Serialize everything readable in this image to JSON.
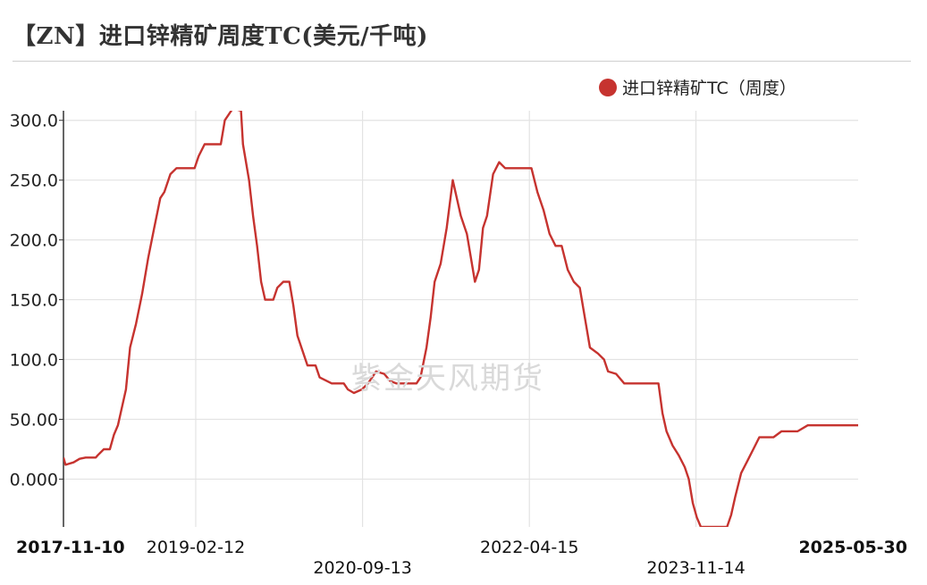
{
  "title": "【ZN】进口锌精矿周度TC(美元/千吨)",
  "watermark": "紫金天风期货",
  "colors": {
    "series": "#c6332f",
    "grid": "#e3e3e3",
    "axis": "#333333"
  },
  "chart_data": {
    "type": "line",
    "title": "【ZN】进口锌精矿周度TC(美元/千吨)",
    "xlabel": "",
    "ylabel": "",
    "xlim": [
      "2017-11-10",
      "2025-05-30"
    ],
    "ylim": [
      -40,
      308
    ],
    "grid": true,
    "legend_position": "top-right",
    "y_ticks": [
      0,
      50,
      100,
      150,
      200,
      250,
      300
    ],
    "y_tick_labels": [
      "0.000",
      "50.00",
      "100.0",
      "150.0",
      "200.0",
      "250.0",
      "300.0"
    ],
    "x_ticks": [
      "2017-11-10",
      "2019-02-12",
      "2020-09-13",
      "2022-04-15",
      "2023-11-14",
      "2025-05-30"
    ],
    "x_tick_bold": [
      true,
      false,
      false,
      false,
      false,
      true
    ],
    "series": [
      {
        "name": "进口锌精矿TC（周度）",
        "points": [
          [
            "2017-11-10",
            18
          ],
          [
            "2017-11-17",
            12
          ],
          [
            "2017-12-15",
            14
          ],
          [
            "2018-01-05",
            17
          ],
          [
            "2018-01-26",
            18
          ],
          [
            "2018-03-02",
            18
          ],
          [
            "2018-03-09",
            20
          ],
          [
            "2018-03-30",
            25
          ],
          [
            "2018-04-20",
            25
          ],
          [
            "2018-05-04",
            37
          ],
          [
            "2018-05-18",
            45
          ],
          [
            "2018-06-01",
            60
          ],
          [
            "2018-06-15",
            75
          ],
          [
            "2018-06-29",
            110
          ],
          [
            "2018-07-20",
            130
          ],
          [
            "2018-08-10",
            155
          ],
          [
            "2018-08-31",
            185
          ],
          [
            "2018-09-21",
            210
          ],
          [
            "2018-10-12",
            235
          ],
          [
            "2018-10-26",
            240
          ],
          [
            "2018-11-16",
            255
          ],
          [
            "2018-12-07",
            260
          ],
          [
            "2019-02-08",
            260
          ],
          [
            "2019-02-22",
            270
          ],
          [
            "2019-03-15",
            280
          ],
          [
            "2019-05-10",
            280
          ],
          [
            "2019-05-24",
            300
          ],
          [
            "2019-06-21",
            310
          ],
          [
            "2019-07-19",
            308
          ],
          [
            "2019-07-26",
            280
          ],
          [
            "2019-08-16",
            250
          ],
          [
            "2019-08-30",
            220
          ],
          [
            "2019-09-13",
            195
          ],
          [
            "2019-09-27",
            165
          ],
          [
            "2019-10-11",
            150
          ],
          [
            "2019-11-08",
            150
          ],
          [
            "2019-11-22",
            160
          ],
          [
            "2019-12-13",
            165
          ],
          [
            "2020-01-03",
            165
          ],
          [
            "2020-01-17",
            145
          ],
          [
            "2020-01-31",
            120
          ],
          [
            "2020-02-14",
            110
          ],
          [
            "2020-03-06",
            95
          ],
          [
            "2020-04-03",
            95
          ],
          [
            "2020-04-17",
            85
          ],
          [
            "2020-05-29",
            80
          ],
          [
            "2020-07-10",
            80
          ],
          [
            "2020-07-24",
            75
          ],
          [
            "2020-08-14",
            72
          ],
          [
            "2020-09-11",
            75
          ],
          [
            "2020-10-02",
            80
          ],
          [
            "2020-10-30",
            90
          ],
          [
            "2020-11-27",
            88
          ],
          [
            "2020-12-18",
            82
          ],
          [
            "2021-01-08",
            80
          ],
          [
            "2021-03-19",
            80
          ],
          [
            "2021-04-02",
            85
          ],
          [
            "2021-04-23",
            110
          ],
          [
            "2021-05-07",
            135
          ],
          [
            "2021-05-21",
            165
          ],
          [
            "2021-06-11",
            180
          ],
          [
            "2021-07-02",
            210
          ],
          [
            "2021-07-23",
            250
          ],
          [
            "2021-08-06",
            235
          ],
          [
            "2021-08-20",
            220
          ],
          [
            "2021-09-10",
            205
          ],
          [
            "2021-09-24",
            185
          ],
          [
            "2021-10-08",
            165
          ],
          [
            "2021-10-22",
            175
          ],
          [
            "2021-11-05",
            210
          ],
          [
            "2021-11-19",
            220
          ],
          [
            "2021-12-10",
            255
          ],
          [
            "2021-12-31",
            265
          ],
          [
            "2022-01-21",
            260
          ],
          [
            "2022-04-22",
            260
          ],
          [
            "2022-05-13",
            240
          ],
          [
            "2022-06-03",
            225
          ],
          [
            "2022-06-24",
            205
          ],
          [
            "2022-07-15",
            195
          ],
          [
            "2022-08-05",
            195
          ],
          [
            "2022-08-26",
            175
          ],
          [
            "2022-09-16",
            165
          ],
          [
            "2022-10-07",
            160
          ],
          [
            "2022-10-28",
            130
          ],
          [
            "2022-11-11",
            110
          ],
          [
            "2022-12-09",
            105
          ],
          [
            "2022-12-30",
            100
          ],
          [
            "2023-01-13",
            90
          ],
          [
            "2023-02-10",
            88
          ],
          [
            "2023-03-10",
            80
          ],
          [
            "2023-07-07",
            80
          ],
          [
            "2023-07-21",
            55
          ],
          [
            "2023-08-04",
            40
          ],
          [
            "2023-08-25",
            28
          ],
          [
            "2023-09-15",
            20
          ],
          [
            "2023-10-06",
            10
          ],
          [
            "2023-10-20",
            0
          ],
          [
            "2023-11-03",
            -20
          ],
          [
            "2023-11-17",
            -32
          ],
          [
            "2023-12-01",
            -40
          ],
          [
            "2024-03-01",
            -40
          ],
          [
            "2024-03-15",
            -30
          ],
          [
            "2024-03-29",
            -15
          ],
          [
            "2024-04-19",
            5
          ],
          [
            "2024-05-10",
            15
          ],
          [
            "2024-05-31",
            25
          ],
          [
            "2024-06-21",
            35
          ],
          [
            "2024-07-12",
            35
          ],
          [
            "2024-08-09",
            35
          ],
          [
            "2024-09-06",
            40
          ],
          [
            "2024-11-01",
            40
          ],
          [
            "2024-12-06",
            45
          ],
          [
            "2025-05-30",
            45
          ]
        ]
      }
    ]
  }
}
